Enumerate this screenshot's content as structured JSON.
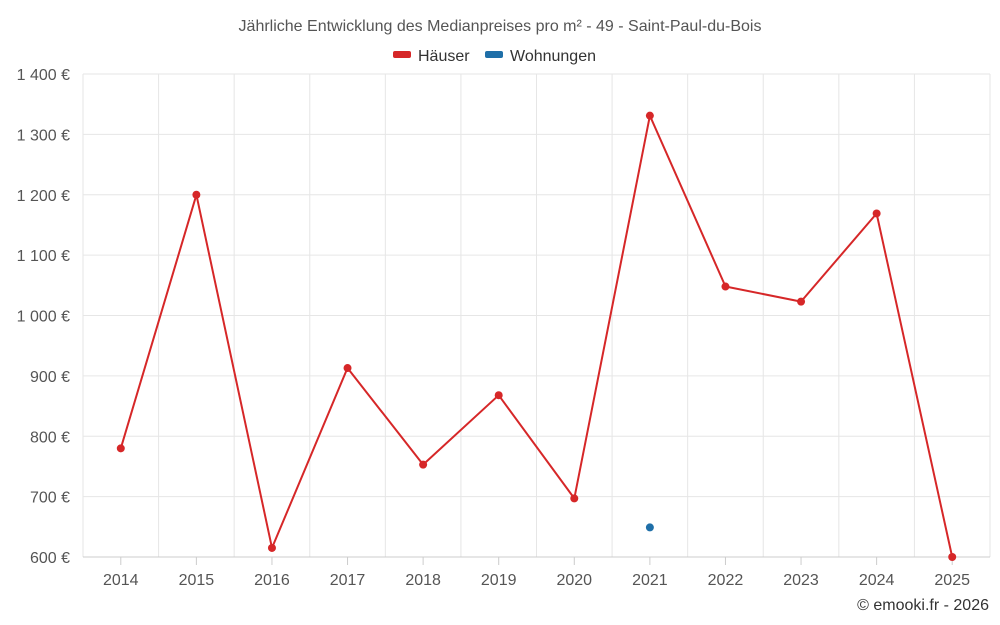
{
  "chart_data": {
    "type": "line",
    "title": "Jährliche Entwicklung des Medianpreises pro m² - 49 - Saint-Paul-du-Bois",
    "x": [
      "2014",
      "2015",
      "2016",
      "2017",
      "2018",
      "2019",
      "2020",
      "2021",
      "2022",
      "2023",
      "2024",
      "2025"
    ],
    "ylim": [
      600,
      1400
    ],
    "yticks": [
      600,
      700,
      800,
      900,
      1000,
      1100,
      1200,
      1300,
      1400
    ],
    "yticks_labels": [
      "600 €",
      "700 €",
      "800 €",
      "900 €",
      "1 000 €",
      "1 100 €",
      "1 200 €",
      "1 300 €",
      "1 400 €"
    ],
    "grid": true,
    "legend_position": "top-center",
    "series": [
      {
        "name": "Häuser",
        "color": "#d62728",
        "values": [
          780,
          1200,
          615,
          913,
          753,
          868,
          697,
          1331,
          1048,
          1023,
          1169,
          600
        ]
      },
      {
        "name": "Wohnungen",
        "color": "#1f6fa8",
        "values": [
          null,
          null,
          null,
          null,
          null,
          null,
          null,
          649,
          null,
          null,
          null,
          null
        ]
      }
    ]
  },
  "credit": "© emooki.fr - 2026"
}
